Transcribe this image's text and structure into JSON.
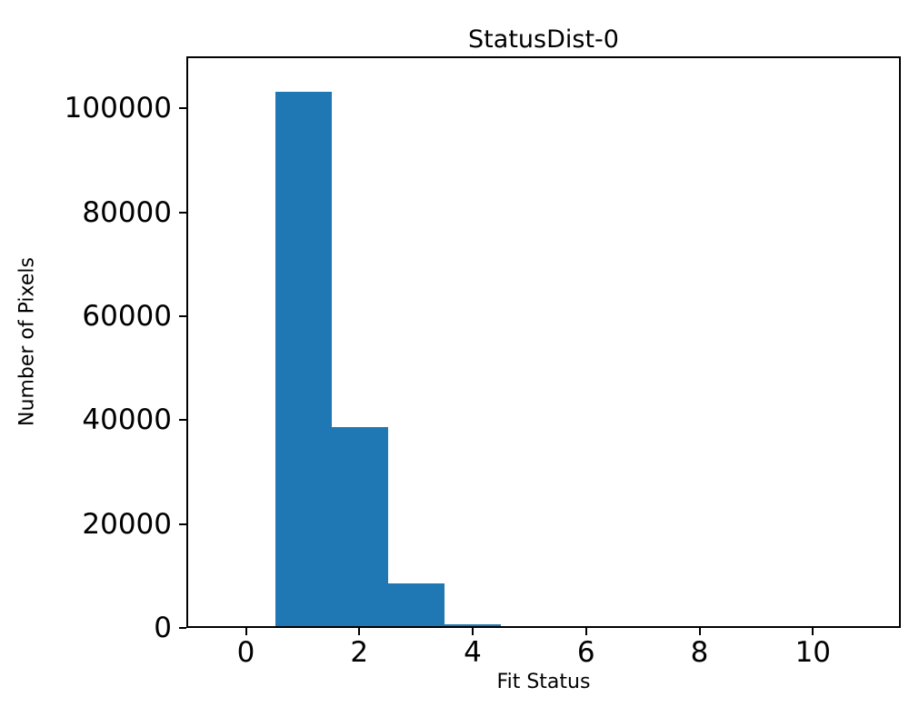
{
  "chart_data": {
    "type": "bar",
    "subtype": "histogram",
    "title": "StatusDist-0",
    "xlabel": "Fit Status",
    "ylabel": "Number of Pixels",
    "bin_edges": [
      0.5,
      1.5,
      2.5,
      3.5,
      4.5
    ],
    "counts": [
      103500,
      38500,
      8200,
      400
    ],
    "bar_color": "#1f77b4",
    "xlim": [
      -1.05,
      11.55
    ],
    "ylim": [
      0,
      110000
    ],
    "xticks": [
      0,
      2,
      4,
      6,
      8,
      10
    ],
    "yticks": [
      0,
      20000,
      40000,
      60000,
      80000,
      100000
    ],
    "grid": false,
    "legend": "none"
  }
}
